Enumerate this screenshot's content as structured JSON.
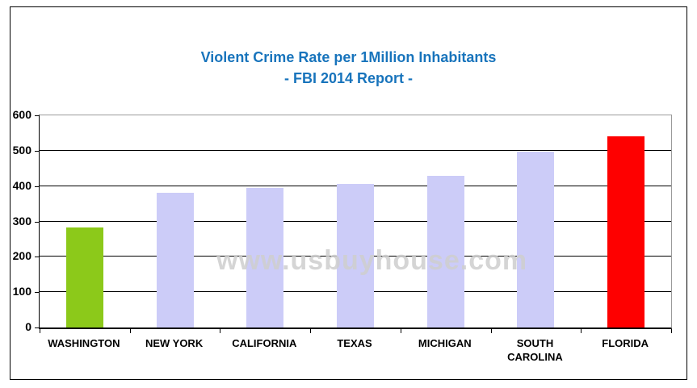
{
  "title": {
    "line1": "Violent Crime Rate per 1Million Inhabitants",
    "line2": "- FBI 2014 Report -",
    "color": "#1874bc"
  },
  "watermark": {
    "text": "www.usbuyhouse.com",
    "color": "#cecece"
  },
  "colors": {
    "highlight_low": "#8cc91a",
    "default_bar": "#ccccf8",
    "highlight_high": "#fe0000",
    "gridline": "#000000",
    "plot_border_gray": "#9a9a9a"
  },
  "chart_data": {
    "type": "bar",
    "title": "Violent Crime Rate per 1Million Inhabitants - FBI 2014 Report -",
    "categories": [
      "WASHINGTON",
      "NEW YORK",
      "CALIFORNIA",
      "TEXAS",
      "MICHIGAN",
      "SOUTH CAROLINA",
      "FLORIDA"
    ],
    "values": [
      283,
      380,
      394,
      407,
      428,
      497,
      540
    ],
    "bar_colors": [
      "#8cc91a",
      "#ccccf8",
      "#ccccf8",
      "#ccccf8",
      "#ccccf8",
      "#ccccf8",
      "#fe0000"
    ],
    "xlabel": "",
    "ylabel": "",
    "ylim": [
      0,
      600
    ],
    "yticks": [
      0,
      100,
      200,
      300,
      400,
      500,
      600
    ],
    "grid": true,
    "legend": false
  }
}
